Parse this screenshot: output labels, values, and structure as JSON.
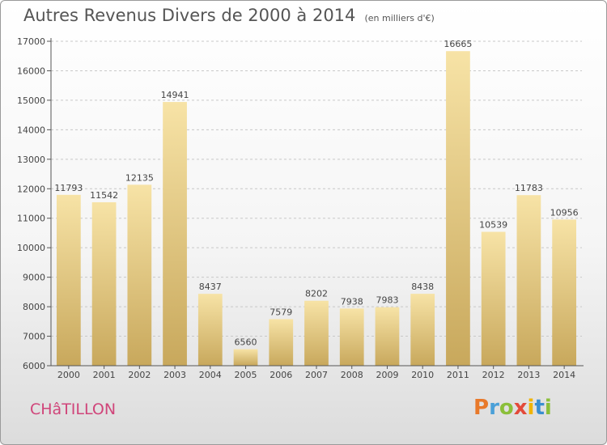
{
  "title": "Autres Revenus Divers de 2000 à 2014",
  "unit": "(en milliers d'€)",
  "place": "CHâTILLON",
  "logo": {
    "letters": [
      "P",
      "r",
      "o",
      "x",
      "i",
      "t",
      "i"
    ],
    "colors": [
      "#e8792a",
      "#4aa0d8",
      "#8bbf3a",
      "#e34a3a",
      "#f0b400",
      "#3a8fd0",
      "#8bbf3a"
    ]
  },
  "colors": {
    "bar_light": "#f7e3a6",
    "bar_dark": "#c8a85c",
    "grid": "#c8c8c8",
    "axis": "#555555",
    "text": "#444444"
  },
  "chart_data": {
    "type": "bar",
    "title": "Autres Revenus Divers de 2000 à 2014",
    "categories": [
      "2000",
      "2001",
      "2002",
      "2003",
      "2004",
      "2005",
      "2006",
      "2007",
      "2008",
      "2009",
      "2010",
      "2011",
      "2012",
      "2013",
      "2014"
    ],
    "values": [
      11793,
      11542,
      12135,
      14941,
      8437,
      6560,
      7579,
      8202,
      7938,
      7983,
      8438,
      16665,
      10539,
      11783,
      10956
    ],
    "ylim": [
      6000,
      17000
    ],
    "yticks": [
      6000,
      7000,
      8000,
      9000,
      10000,
      11000,
      12000,
      13000,
      14000,
      15000,
      16000,
      17000
    ],
    "grid": true,
    "xlabel": "",
    "ylabel": ""
  }
}
